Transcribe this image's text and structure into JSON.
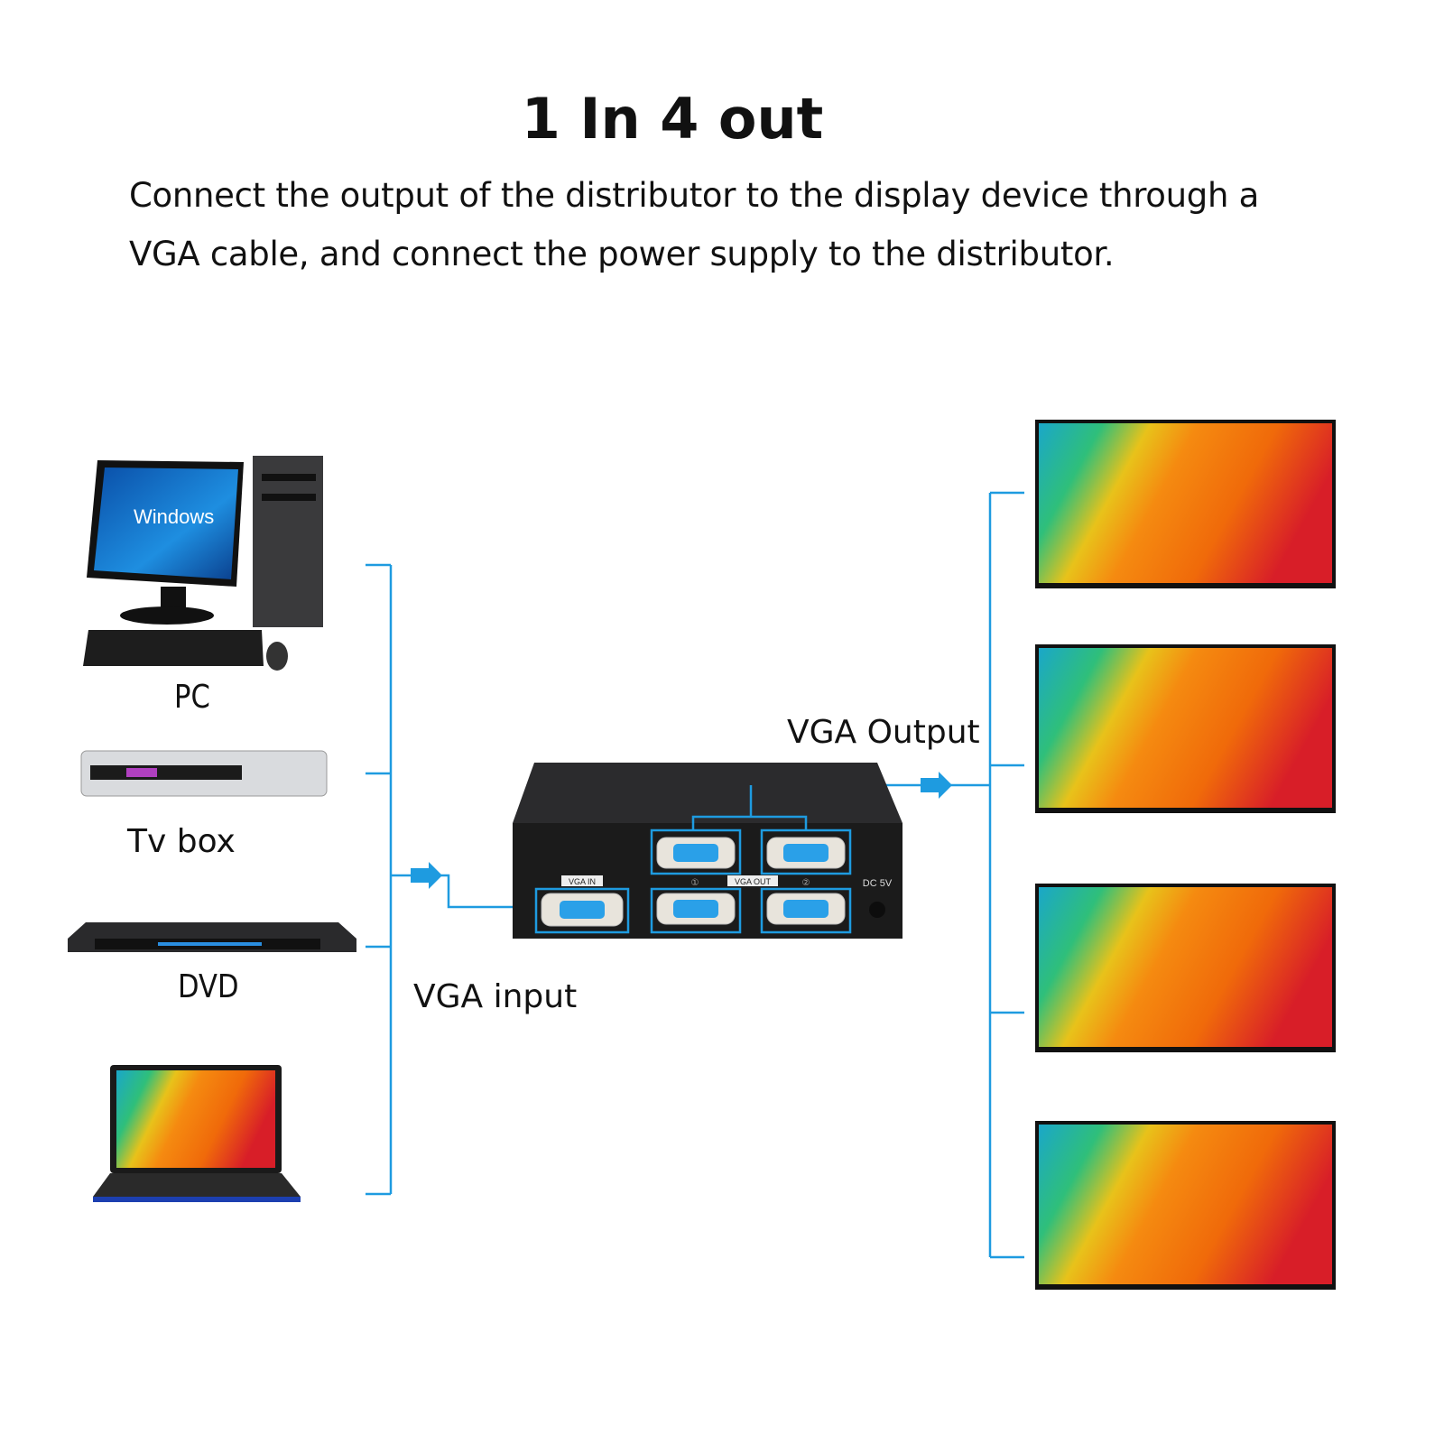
{
  "title": "1 In 4 out",
  "description": {
    "line1": "Connect the output of the distributor to the display device through a",
    "line2": "VGA cable, and connect the power supply to the distributor."
  },
  "sources": [
    {
      "label": "PC",
      "icon": "desktop-pc-icon",
      "screen_text": "Windows"
    },
    {
      "label": "Tv box",
      "icon": "tv-box-icon"
    },
    {
      "label": "DVD",
      "icon": "dvd-player-icon"
    },
    {
      "label": "",
      "icon": "laptop-icon"
    }
  ],
  "labels": {
    "vga_input": "VGA input",
    "vga_output": "VGA Output"
  },
  "distributor": {
    "port_in_label": "VGA IN",
    "port_out_label": "VGA OUT",
    "power_label": "DC 5V",
    "port_numbers": [
      "①",
      "②"
    ]
  },
  "displays": 4,
  "colors": {
    "connector_line": "#1e9be0",
    "arrow": "#1e9be0",
    "device_body": "#1b1b1b"
  }
}
